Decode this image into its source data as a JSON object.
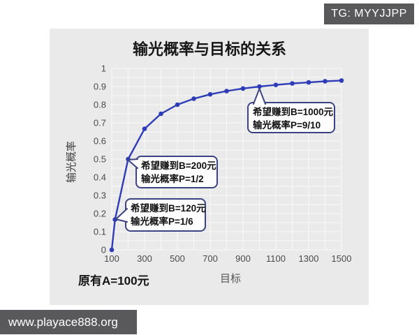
{
  "header": {
    "tg_badge": "TG: MYYJJPP"
  },
  "footer": {
    "site_badge": "www.playace888.org"
  },
  "chart_data": {
    "type": "line",
    "title": "输光概率与目标的关系",
    "xlabel": "目标",
    "ylabel": "输光概率",
    "annotation": "原有A=100元",
    "x": [
      100,
      120,
      200,
      300,
      400,
      500,
      600,
      700,
      800,
      900,
      1000,
      1100,
      1200,
      1300,
      1400,
      1500
    ],
    "y": [
      0,
      0.167,
      0.5,
      0.667,
      0.75,
      0.8,
      0.833,
      0.857,
      0.875,
      0.889,
      0.9,
      0.909,
      0.917,
      0.923,
      0.929,
      0.933
    ],
    "xlim": [
      100,
      1500
    ],
    "ylim": [
      0,
      1
    ],
    "x_ticks": [
      100,
      300,
      500,
      700,
      900,
      1100,
      1300,
      1500
    ],
    "y_ticks": [
      0,
      0.1,
      0.2,
      0.3,
      0.4,
      0.5,
      0.6,
      0.7,
      0.8,
      0.9,
      1
    ],
    "grid": true,
    "legend": "none",
    "callouts": [
      {
        "lines": [
          "希望赚到B=120元",
          "输光概率P=1/6"
        ],
        "target": {
          "x": 120,
          "y": 0.167
        }
      },
      {
        "lines": [
          "希望赚到B=200元",
          "输光概率P=1/2"
        ],
        "target": {
          "x": 200,
          "y": 0.5
        }
      },
      {
        "lines": [
          "希望赚到B=1000元",
          "输光概率P=9/10"
        ],
        "target": {
          "x": 1000,
          "y": 0.9
        }
      }
    ]
  },
  "colors": {
    "panel_bg": "#eaeaea",
    "grid_line": "#f7f7f7",
    "line": "#2e3cb8",
    "badge_bg": "#59595b",
    "callout_border": "#3c4383",
    "callout_fill": "#fdfdfd",
    "tick_text": "#4a4a4a",
    "title_text": "#161616"
  }
}
